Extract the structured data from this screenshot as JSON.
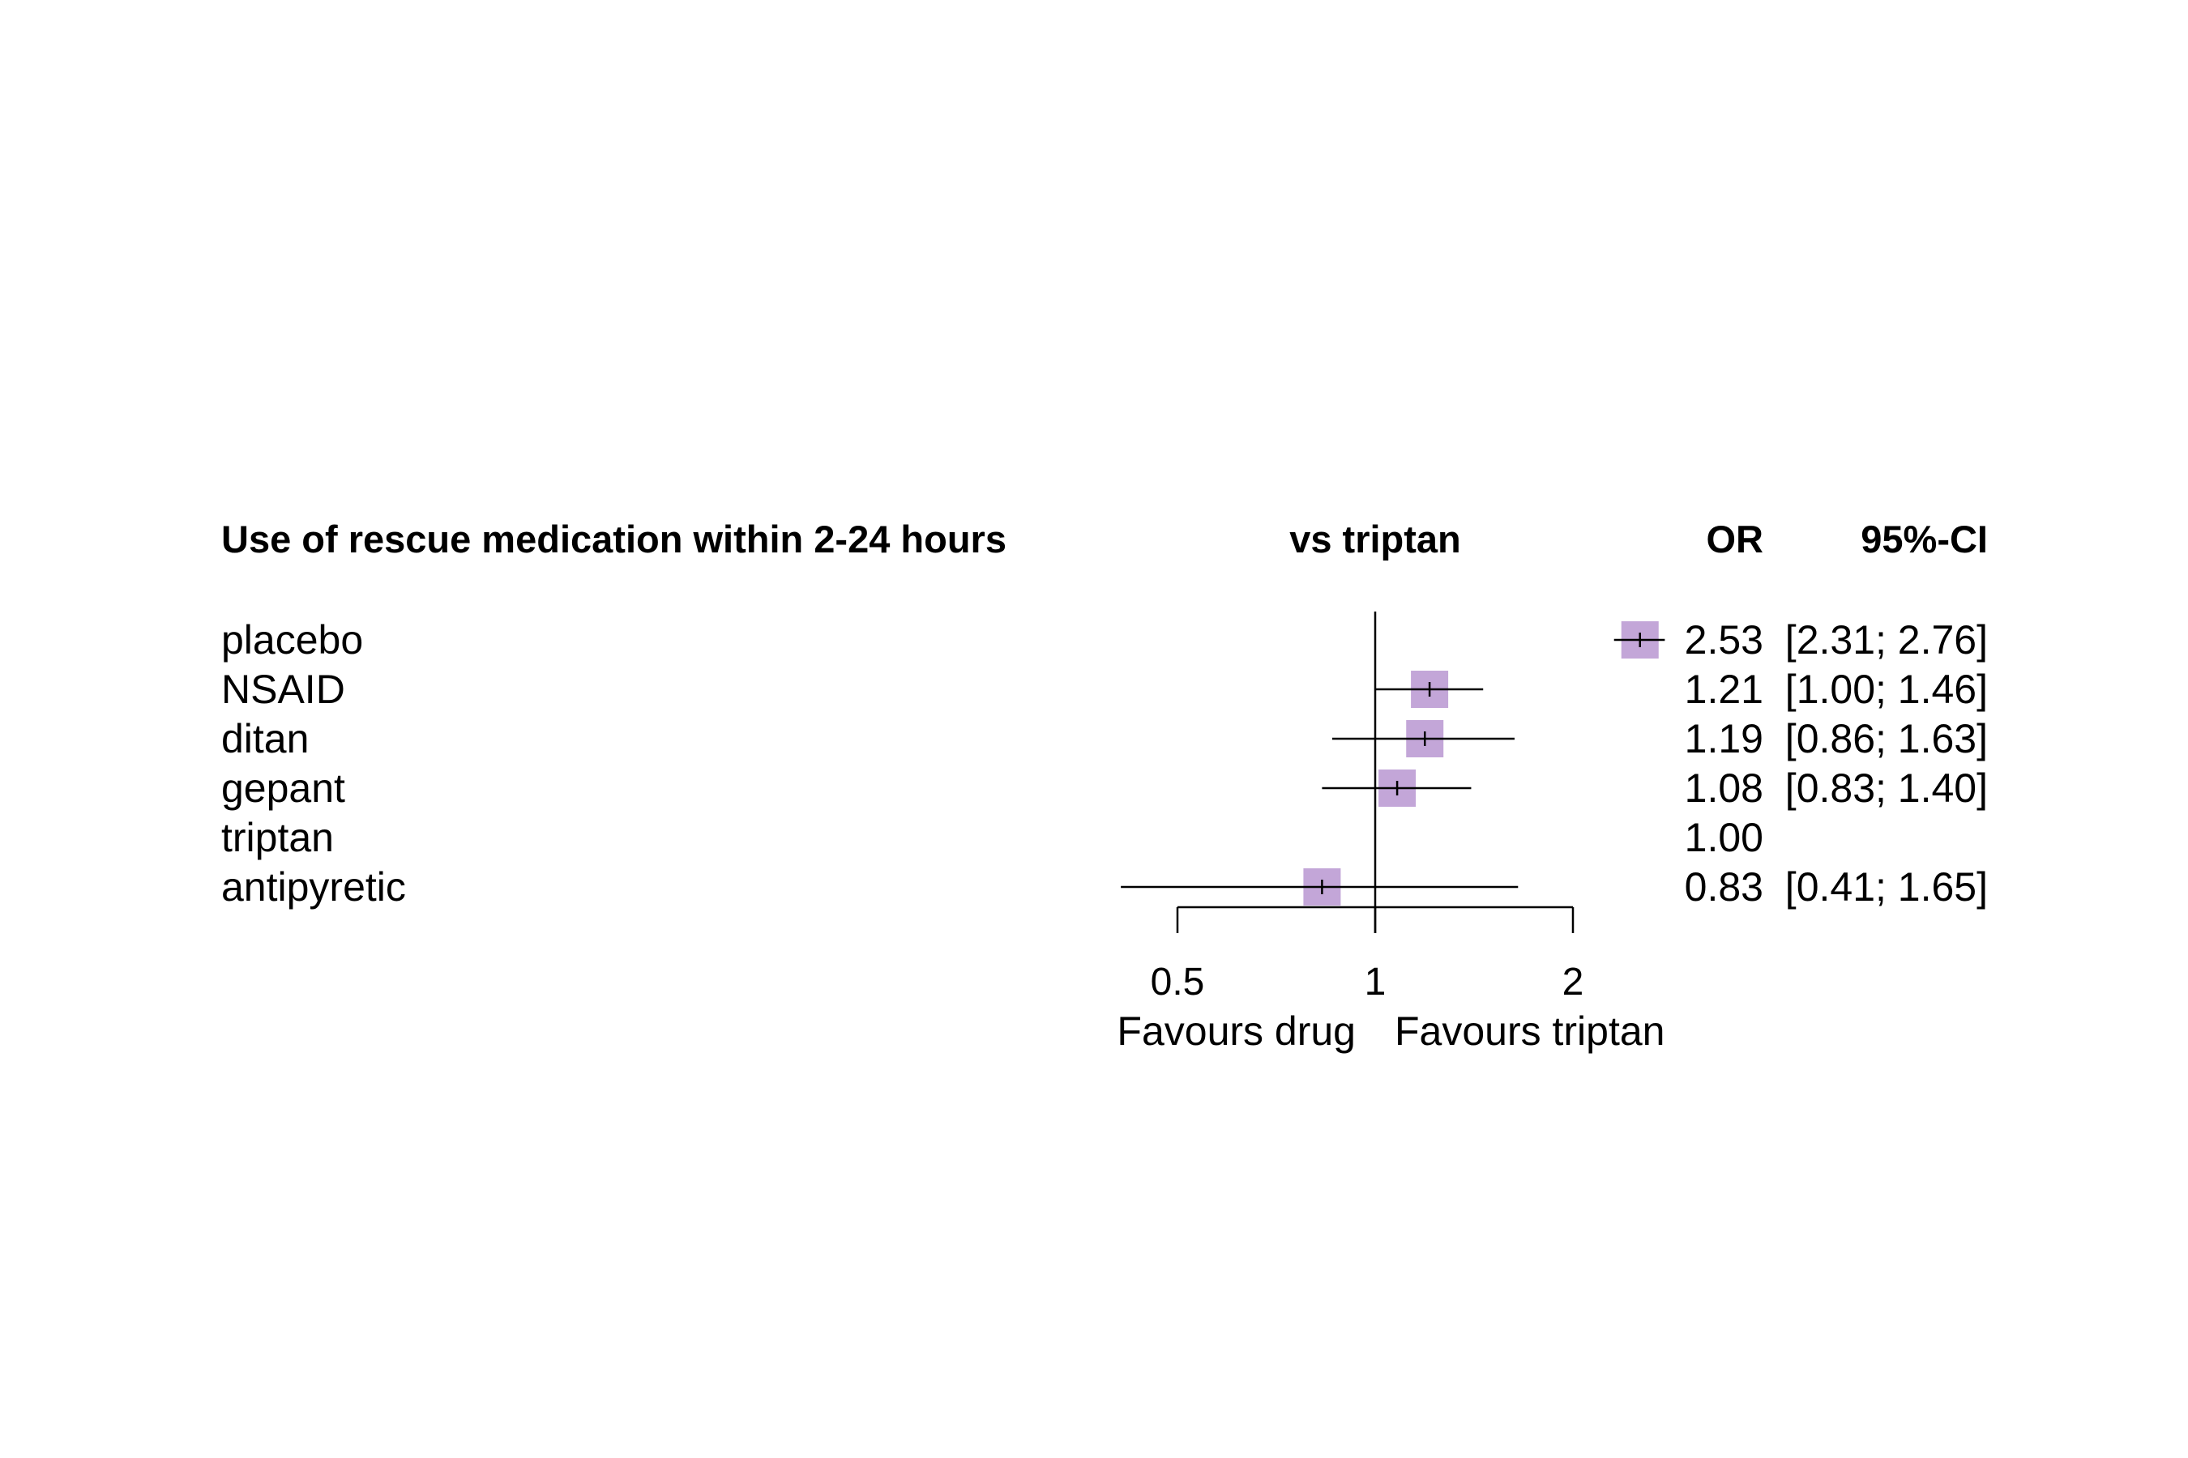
{
  "chart_data": {
    "type": "forest",
    "title": "Use of rescue medication within 2-24 hours",
    "comparison_label": "vs triptan",
    "or_header": "OR",
    "ci_header": "95%-CI",
    "scale": "log",
    "xlim": [
      0.5,
      2
    ],
    "x_ticks": [
      {
        "value": 0.5,
        "label": "0.5"
      },
      {
        "value": 1,
        "label": "1"
      },
      {
        "value": 2,
        "label": "2"
      }
    ],
    "reference_value": 1,
    "favours_left": "Favours drug",
    "favours_right": "Favours triptan",
    "marker_color": "#c3a6d8",
    "rows": [
      {
        "label": "placebo",
        "or": 2.53,
        "lower": 2.31,
        "upper": 2.76,
        "or_text": "2.53",
        "ci_text": "[2.31; 2.76]"
      },
      {
        "label": "NSAID",
        "or": 1.21,
        "lower": 1.0,
        "upper": 1.46,
        "or_text": "1.21",
        "ci_text": "[1.00; 1.46]"
      },
      {
        "label": "ditan",
        "or": 1.19,
        "lower": 0.86,
        "upper": 1.63,
        "or_text": "1.19",
        "ci_text": "[0.86; 1.63]"
      },
      {
        "label": "gepant",
        "or": 1.08,
        "lower": 0.83,
        "upper": 1.4,
        "or_text": "1.08",
        "ci_text": "[0.83; 1.40]"
      },
      {
        "label": "triptan",
        "or": 1.0,
        "lower": null,
        "upper": null,
        "or_text": "1.00",
        "ci_text": ""
      },
      {
        "label": "antipyretic",
        "or": 0.83,
        "lower": 0.41,
        "upper": 1.65,
        "or_text": "0.83",
        "ci_text": "[0.41; 1.65]"
      }
    ]
  }
}
